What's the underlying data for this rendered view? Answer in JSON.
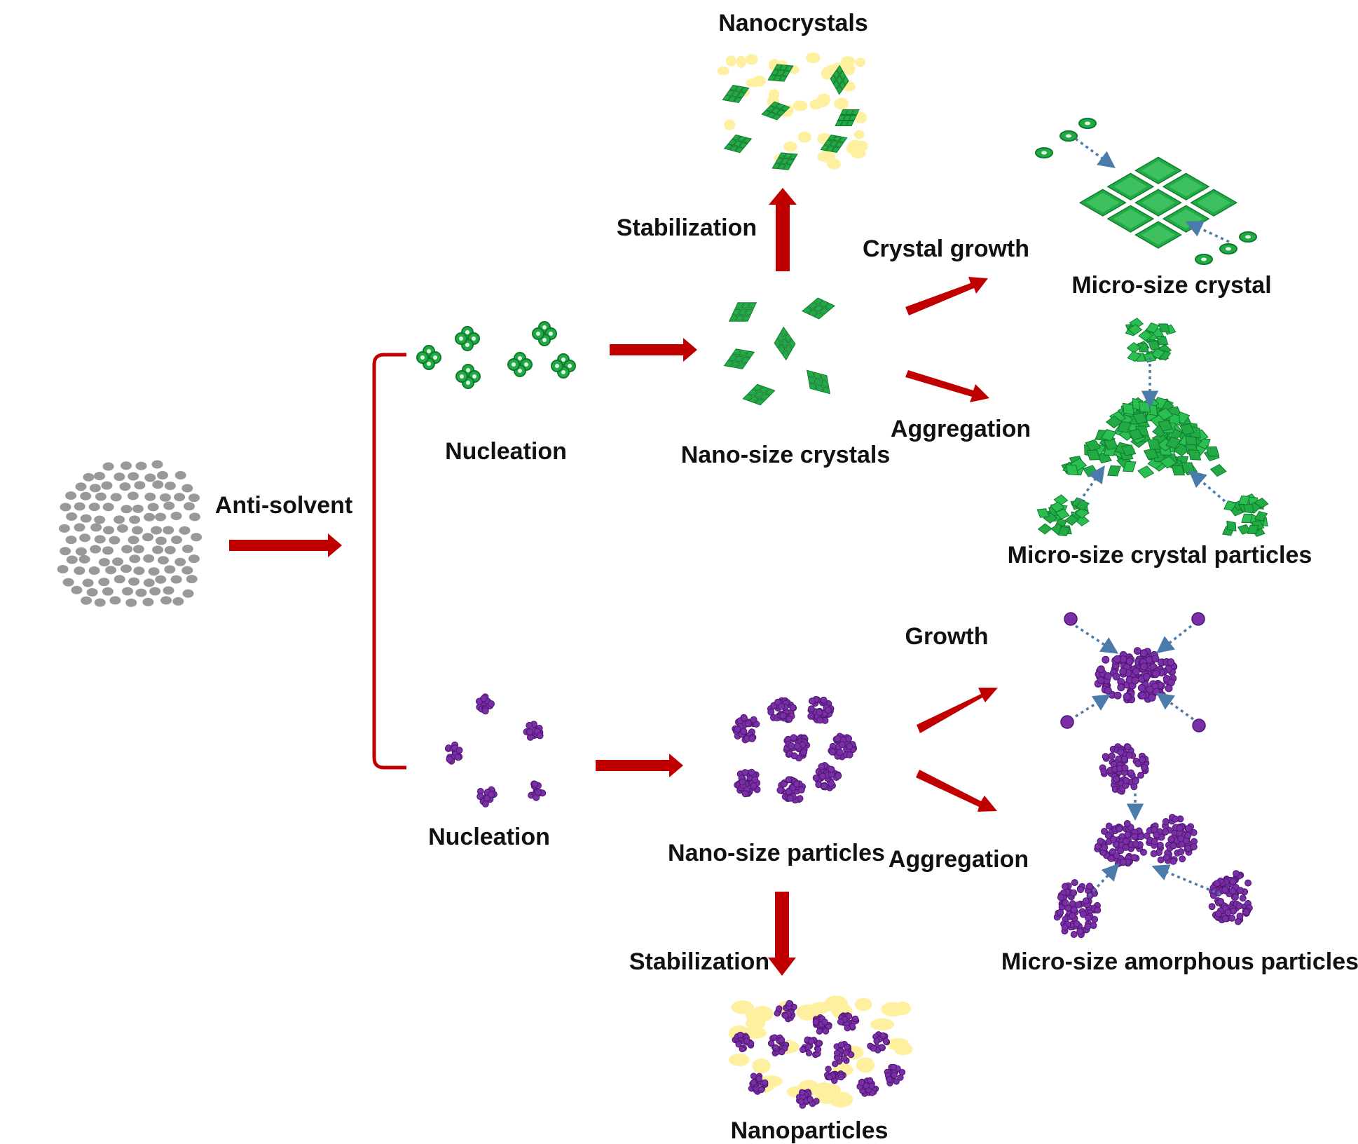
{
  "labels": {
    "nanocrystals": "Nanocrystals",
    "stabilization_top": "Stabilization",
    "crystal_growth": "Crystal growth",
    "micro_size_crystal": "Micro-size crystal",
    "nucleation_crystal": "Nucleation",
    "nano_size_crystals": "Nano-size crystals",
    "aggregation_top": "Aggregation",
    "micro_size_crystal_particles": "Micro-size crystal particles",
    "anti_solvent": "Anti-solvent",
    "growth": "Growth",
    "nucleation_amorphous": "Nucleation",
    "nano_size_particles": "Nano-size particles",
    "aggregation_bottom": "Aggregation",
    "stabilization_bottom": "Stabilization",
    "micro_size_amorphous_particles": "Micro-size amorphous particles",
    "nanoparticles": "Nanoparticles"
  },
  "colors": {
    "arrow": "#c00000",
    "dotted_arrow": "#4a7bab",
    "solute": "#999999",
    "crystal": "#22aa44",
    "crystal_dark": "#0e7a2e",
    "amorphous": "#7a2fa6",
    "stabilizer": "#fff0a0"
  }
}
